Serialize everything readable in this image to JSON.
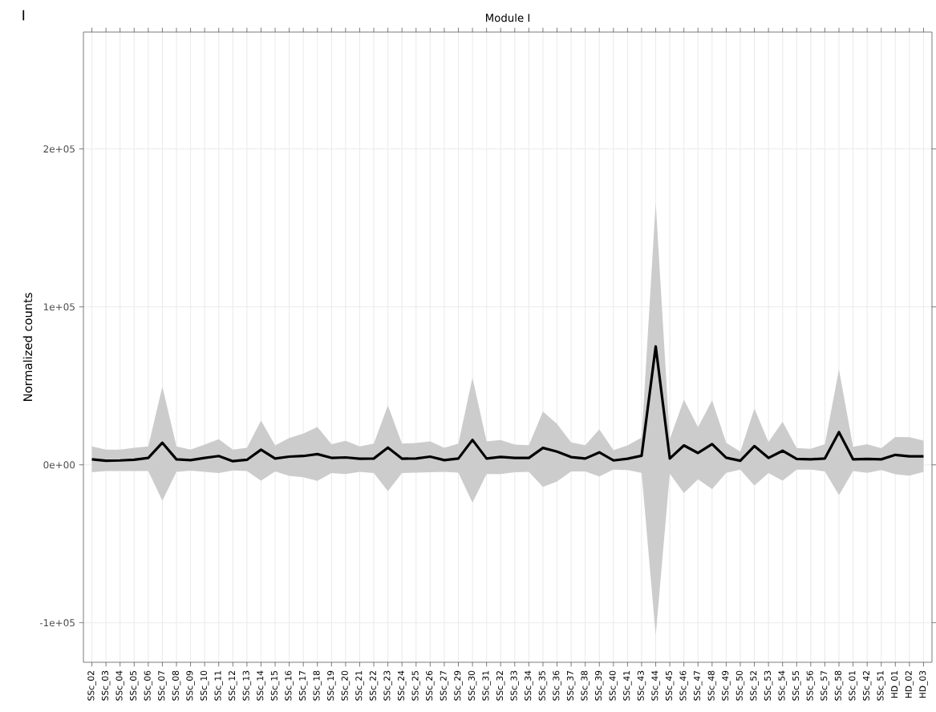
{
  "chart_data": {
    "type": "line",
    "title": "Module I",
    "ylabel": "Normalized counts",
    "annotations": [
      "I"
    ],
    "categories": [
      "SSc_02",
      "SSc_03",
      "SSc_04",
      "SSc_05",
      "SSc_06",
      "SSc_07",
      "SSc_08",
      "SSc_09",
      "SSc_10",
      "SSc_11",
      "SSc_12",
      "SSc_13",
      "SSc_14",
      "SSc_15",
      "SSc_16",
      "SSc_17",
      "SSc_18",
      "SSc_19",
      "SSc_20",
      "SSc_21",
      "SSc_22",
      "SSc_23",
      "SSc_24",
      "SSc_25",
      "SSc_26",
      "SSc_27",
      "SSc_29",
      "SSc_30",
      "SSc_31",
      "SSc_32",
      "SSc_33",
      "SSc_34",
      "SSc_35",
      "SSc_36",
      "SSc_37",
      "SSc_38",
      "SSc_39",
      "SSc_40",
      "SSc_41",
      "SSc_43",
      "SSc_44",
      "SSc_45",
      "SSc_46",
      "SSc_47",
      "SSc_48",
      "SSc_49",
      "SSc_50",
      "SSc_52",
      "SSc_53",
      "SSc_54",
      "SSc_55",
      "SSc_56",
      "SSc_57",
      "SSc_58",
      "SSc_01",
      "SSc_42",
      "SSc_51",
      "HD_01",
      "HD_02",
      "HD_03"
    ],
    "series": [
      {
        "color": "#000000",
        "values": [
          3500,
          2600,
          2800,
          3200,
          4400,
          14000,
          3500,
          3000,
          4400,
          5600,
          2300,
          3200,
          9600,
          4000,
          5200,
          5600,
          6800,
          4400,
          4700,
          3900,
          4000,
          10900,
          3900,
          4000,
          5200,
          3000,
          4000,
          15800,
          4000,
          5000,
          4400,
          4400,
          10700,
          8400,
          4900,
          4000,
          7900,
          2800,
          3900,
          5800,
          74900,
          4000,
          12300,
          7500,
          13100,
          4500,
          2600,
          11900,
          4400,
          8900,
          3700,
          3500,
          4000,
          20700,
          3500,
          3700,
          3500,
          6300,
          5400,
          5400
        ],
        "upper": [
          11700,
          9600,
          9600,
          10800,
          11700,
          49500,
          11700,
          9600,
          12800,
          16300,
          9600,
          10800,
          28000,
          12300,
          17000,
          19800,
          24000,
          13100,
          15200,
          11700,
          13500,
          37600,
          13500,
          13800,
          14900,
          10800,
          13500,
          55100,
          14900,
          15700,
          12800,
          12400,
          33800,
          25900,
          14200,
          12400,
          22400,
          9300,
          12300,
          17200,
          166000,
          16300,
          41300,
          23800,
          40800,
          14000,
          8400,
          35500,
          14500,
          27300,
          10700,
          10200,
          13100,
          60400,
          11400,
          13100,
          10500,
          17700,
          17500,
          15400
        ],
        "lower": [
          -4700,
          -3900,
          -3900,
          -4000,
          -4000,
          -22700,
          -4400,
          -3700,
          -4400,
          -5200,
          -3500,
          -3900,
          -10000,
          -4200,
          -7000,
          -7900,
          -10200,
          -5200,
          -5800,
          -4400,
          -5200,
          -16600,
          -5200,
          -4900,
          -4700,
          -4400,
          -4900,
          -24000,
          -5800,
          -5800,
          -4700,
          -4400,
          -14000,
          -10500,
          -4200,
          -4200,
          -7400,
          -3000,
          -3300,
          -5100,
          -108000,
          -5600,
          -17900,
          -9100,
          -15400,
          -5100,
          -3000,
          -13100,
          -5200,
          -10000,
          -3000,
          -3000,
          -4200,
          -19200,
          -3900,
          -5100,
          -3300,
          -6000,
          -6800,
          -4400
        ]
      }
    ],
    "ylim": [
      -125000,
      274000
    ],
    "yticks": [
      {
        "value": -100000,
        "label": "-1e+05"
      },
      {
        "value": 0,
        "label": "0e+00"
      },
      {
        "value": 100000,
        "label": "1e+05"
      },
      {
        "value": 200000,
        "label": "2e+05"
      }
    ],
    "grid": true
  }
}
